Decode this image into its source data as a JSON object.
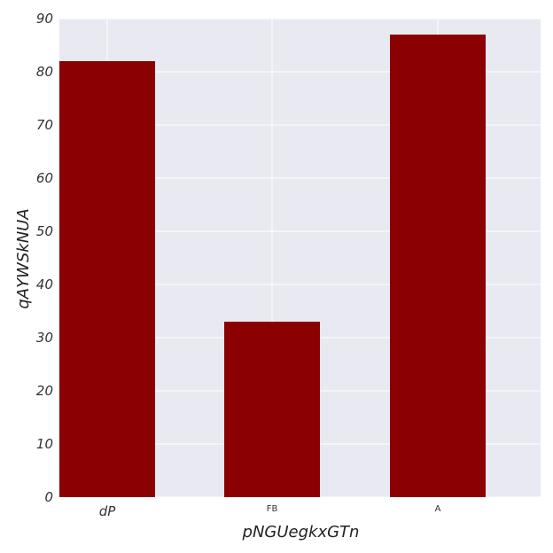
{
  "chart_data": {
    "type": "bar",
    "title": "",
    "xlabel": "pNGUegkxGTn",
    "ylabel": "qAYWSkNUA",
    "categories": [
      "dP",
      "FB",
      "A"
    ],
    "values": [
      82,
      33,
      87
    ],
    "ylim": [
      0,
      90
    ],
    "yticks": [
      0,
      10,
      20,
      30,
      40,
      50,
      60,
      70,
      80,
      90
    ],
    "grid": true,
    "legend": "none",
    "colors": {
      "bar": "#8b0000",
      "plot_background": "#e9e9f1",
      "grid": "#ffffff"
    }
  }
}
